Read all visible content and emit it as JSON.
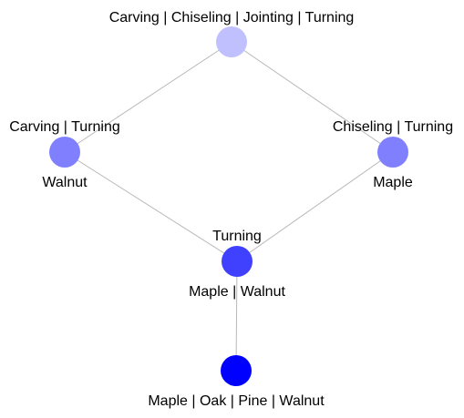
{
  "nodes": [
    {
      "id": "top",
      "top_label": "Carving | Chiseling | Jointing | Turning",
      "bottom_label": "",
      "color": "#c0c0ff"
    },
    {
      "id": "left",
      "top_label": "Carving | Turning",
      "bottom_label": "Walnut",
      "color": "#8080ff"
    },
    {
      "id": "right",
      "top_label": "Chiseling | Turning",
      "bottom_label": "Maple",
      "color": "#8080ff"
    },
    {
      "id": "mid",
      "top_label": "Turning",
      "bottom_label": "Maple | Walnut",
      "color": "#4040ff"
    },
    {
      "id": "bottom",
      "top_label": "",
      "bottom_label": "Maple | Oak | Pine | Walnut",
      "color": "#0000ff"
    }
  ],
  "edges": [
    {
      "from": "top",
      "to": "left"
    },
    {
      "from": "top",
      "to": "right"
    },
    {
      "from": "left",
      "to": "mid"
    },
    {
      "from": "right",
      "to": "mid"
    },
    {
      "from": "mid",
      "to": "bottom"
    }
  ]
}
